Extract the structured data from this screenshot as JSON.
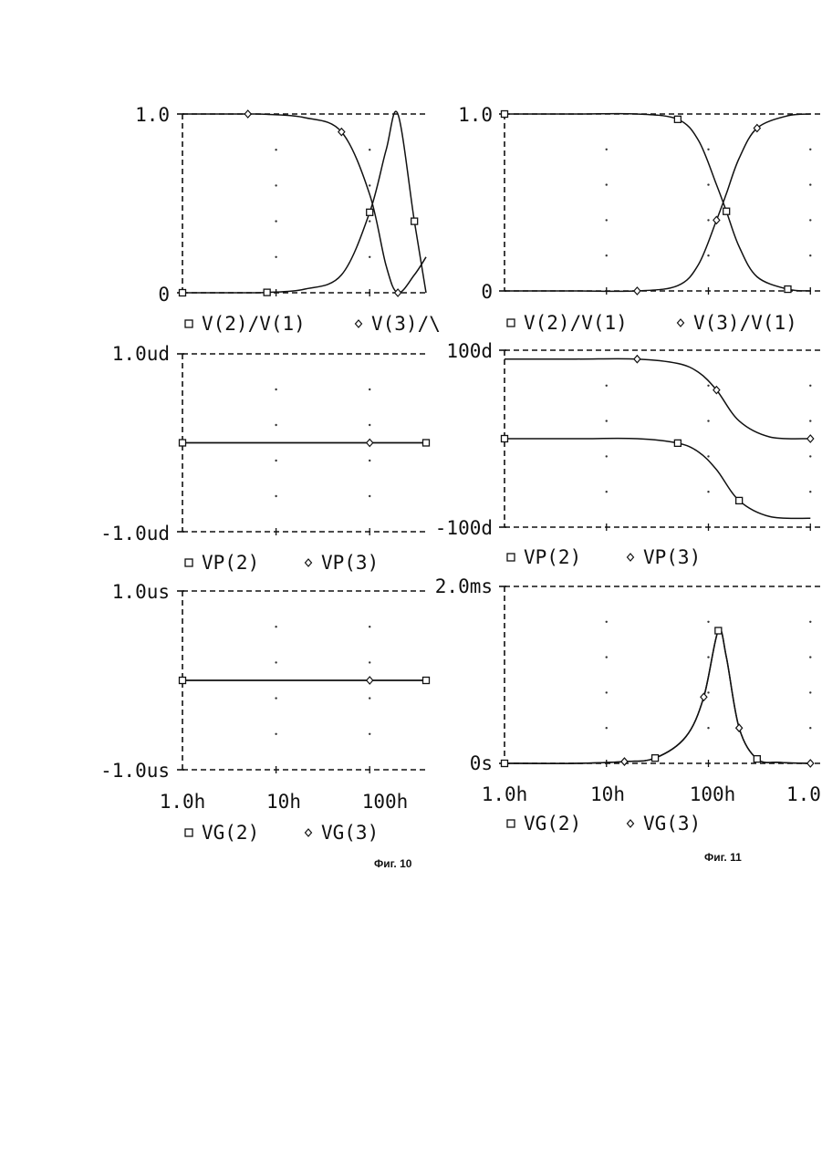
{
  "panels": [
    {
      "id": "fig10-top",
      "ymax_label": "1.0",
      "ymin_label": "0",
      "legend": [
        {
          "marker": "square",
          "text": "V(2)/V(1)"
        },
        {
          "marker": "diamond",
          "text": "V(3)/\\"
        }
      ]
    },
    {
      "id": "fig10-mid",
      "ymax_label": "1.0ud",
      "ymin_label": "-1.0ud",
      "legend": [
        {
          "marker": "square",
          "text": "VP(2)"
        },
        {
          "marker": "diamond",
          "text": "VP(3)"
        }
      ]
    },
    {
      "id": "fig10-bot",
      "ymax_label": "1.0us",
      "ymin_label": "-1.0us",
      "xticks": [
        "1.0h",
        "10h",
        "100h"
      ],
      "legend": [
        {
          "marker": "square",
          "text": "VG(2)"
        },
        {
          "marker": "diamond",
          "text": "VG(3)"
        }
      ]
    },
    {
      "id": "fig11-top",
      "ymax_label": "1.0",
      "ymin_label": "0",
      "legend": [
        {
          "marker": "square",
          "text": "V(2)/V(1)"
        },
        {
          "marker": "diamond",
          "text": "V(3)/V(1)"
        }
      ]
    },
    {
      "id": "fig11-mid",
      "ymax_label": "100d",
      "ymin_label": "-100d",
      "legend": [
        {
          "marker": "square",
          "text": "VP(2)"
        },
        {
          "marker": "diamond",
          "text": "VP(3)"
        }
      ]
    },
    {
      "id": "fig11-bot",
      "ymax_label": "2.0ms",
      "ymin_label": "0s",
      "xticks": [
        "1.0h",
        "10h",
        "100h",
        "1.0"
      ],
      "legend": [
        {
          "marker": "square",
          "text": "VG(2)"
        },
        {
          "marker": "diamond",
          "text": "VG(3)"
        }
      ]
    }
  ],
  "captions": [
    "Фиг. 10",
    "Фиг. 11"
  ],
  "chart_data": [
    {
      "type": "line",
      "figure": "Фиг. 10",
      "panel": "top",
      "xscale": "log",
      "x": [
        1,
        2,
        5,
        8,
        20,
        50,
        100,
        150,
        200,
        300,
        400
      ],
      "series": [
        {
          "name": "V(2)/V(1)",
          "marker": "square",
          "values": [
            0,
            0,
            0,
            0.002,
            0.02,
            0.1,
            0.45,
            0.8,
            1.0,
            0.4,
            0.0
          ]
        },
        {
          "name": "V(3)/\\",
          "marker": "diamond",
          "values": [
            1.0,
            1.0,
            1.0,
            0.998,
            0.98,
            0.9,
            0.55,
            0.15,
            0.0,
            0.1,
            0.2
          ]
        }
      ],
      "ylim": [
        0,
        1.0
      ]
    },
    {
      "type": "line",
      "figure": "Фиг. 10",
      "panel": "middle",
      "xscale": "log",
      "x": [
        1,
        10,
        100,
        400
      ],
      "series": [
        {
          "name": "VP(2)",
          "marker": "square",
          "values": [
            0,
            0,
            0,
            0
          ]
        },
        {
          "name": "VP(3)",
          "marker": "diamond",
          "values": [
            0,
            0,
            0,
            0
          ]
        }
      ],
      "ylim": [
        -1.0,
        1.0
      ],
      "yunit": "ud"
    },
    {
      "type": "line",
      "figure": "Фиг. 10",
      "panel": "bottom",
      "xscale": "log",
      "x": [
        1,
        10,
        100,
        400
      ],
      "series": [
        {
          "name": "VG(2)",
          "marker": "square",
          "values": [
            0,
            0,
            0,
            0
          ]
        },
        {
          "name": "VG(3)",
          "marker": "diamond",
          "values": [
            0,
            0,
            0,
            0
          ]
        }
      ],
      "ylim": [
        -1.0,
        1.0
      ],
      "yunit": "us"
    },
    {
      "type": "line",
      "figure": "Фиг. 11",
      "panel": "top",
      "xscale": "log",
      "x": [
        1,
        5,
        20,
        50,
        80,
        120,
        150,
        200,
        300,
        600,
        1000
      ],
      "series": [
        {
          "name": "V(2)/V(1)",
          "marker": "square",
          "values": [
            1.0,
            1.0,
            1.0,
            0.97,
            0.85,
            0.6,
            0.45,
            0.25,
            0.08,
            0.01,
            0.0
          ]
        },
        {
          "name": "V(3)/V(1)",
          "marker": "diamond",
          "values": [
            0,
            0,
            0,
            0.03,
            0.15,
            0.4,
            0.55,
            0.75,
            0.92,
            0.99,
            1.0
          ]
        }
      ],
      "ylim": [
        0,
        1.0
      ]
    },
    {
      "type": "line",
      "figure": "Фиг. 11",
      "panel": "middle",
      "xscale": "log",
      "x": [
        1,
        5,
        20,
        50,
        80,
        120,
        200,
        400,
        1000
      ],
      "series": [
        {
          "name": "VP(2)",
          "marker": "square",
          "values": [
            0,
            0,
            0,
            -5,
            -15,
            -35,
            -70,
            -88,
            -90
          ]
        },
        {
          "name": "VP(3)",
          "marker": "diamond",
          "values": [
            90,
            90,
            90,
            85,
            75,
            55,
            20,
            2,
            0
          ]
        }
      ],
      "ylim": [
        -100,
        100
      ],
      "yunit": "d"
    },
    {
      "type": "line",
      "figure": "Фиг. 11",
      "panel": "bottom",
      "xscale": "log",
      "x": [
        1,
        5,
        15,
        30,
        60,
        90,
        125,
        150,
        200,
        300,
        500,
        1000
      ],
      "series": [
        {
          "name": "VG(2)",
          "marker": "square",
          "values": [
            0,
            0,
            0.02,
            0.06,
            0.3,
            0.75,
            1.5,
            1.2,
            0.4,
            0.05,
            0.01,
            0
          ]
        },
        {
          "name": "VG(3)",
          "marker": "diamond",
          "values": [
            0,
            0,
            0.02,
            0.06,
            0.3,
            0.75,
            1.5,
            1.2,
            0.4,
            0.05,
            0.01,
            0
          ]
        }
      ],
      "ylim": [
        0,
        2.0
      ],
      "yunit": "ms"
    }
  ]
}
